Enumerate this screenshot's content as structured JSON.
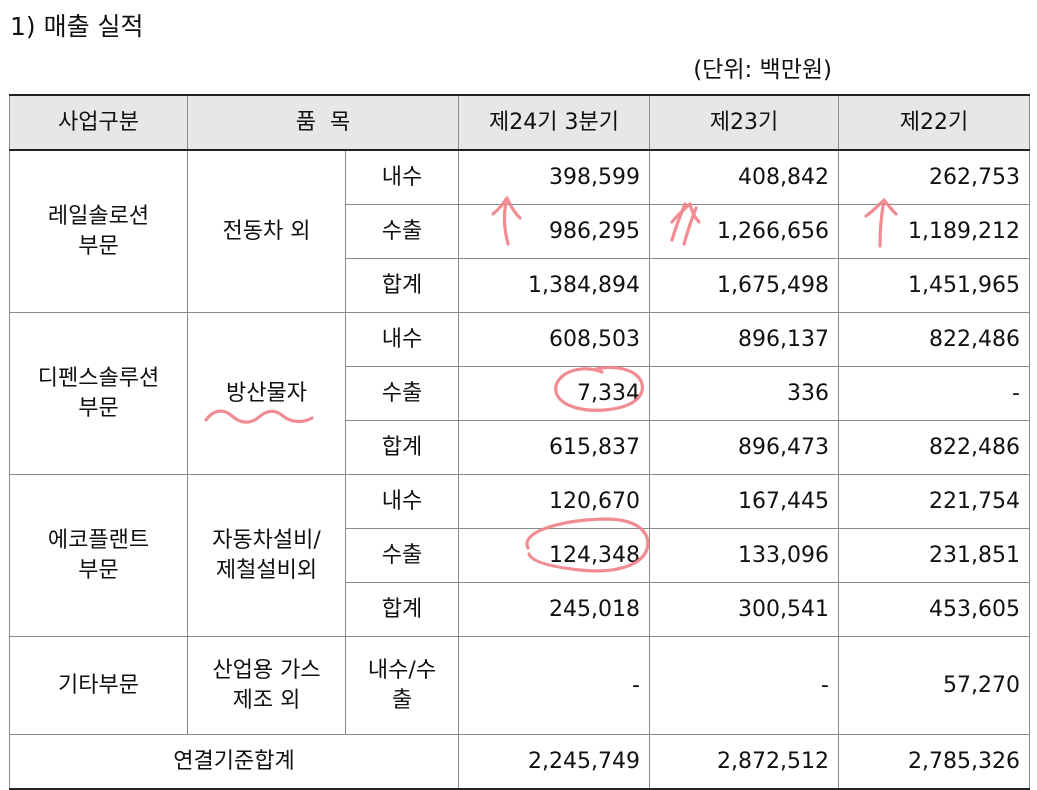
{
  "title": "1) 매출 실적",
  "unit": "(단위: 백만원)",
  "headers": {
    "division": "사업구분",
    "product": "품  목",
    "p24": "제24기 3분기",
    "p23": "제23기",
    "p22": "제22기"
  },
  "sections": [
    {
      "division": [
        "레일솔로션",
        "부문"
      ],
      "product": [
        "전동차 외"
      ],
      "rows": [
        {
          "type": "내수",
          "p24": "398,599",
          "p23": "408,842",
          "p22": "262,753"
        },
        {
          "type": "수출",
          "p24": "986,295",
          "p23": "1,266,656",
          "p22": "1,189,212"
        },
        {
          "type": "합계",
          "p24": "1,384,894",
          "p23": "1,675,498",
          "p22": "1,451,965"
        }
      ]
    },
    {
      "division": [
        "디펜스솔루션",
        "부문"
      ],
      "product": [
        "방산물자"
      ],
      "rows": [
        {
          "type": "내수",
          "p24": "608,503",
          "p23": "896,137",
          "p22": "822,486"
        },
        {
          "type": "수출",
          "p24": "7,334",
          "p23": "336",
          "p22": "-"
        },
        {
          "type": "합계",
          "p24": "615,837",
          "p23": "896,473",
          "p22": "822,486"
        }
      ]
    },
    {
      "division": [
        "에코플랜트",
        "부문"
      ],
      "product": [
        "자동차설비/",
        "제철설비외"
      ],
      "rows": [
        {
          "type": "내수",
          "p24": "120,670",
          "p23": "167,445",
          "p22": "221,754"
        },
        {
          "type": "수출",
          "p24": "124,348",
          "p23": "133,096",
          "p22": "231,851"
        },
        {
          "type": "합계",
          "p24": "245,018",
          "p23": "300,541",
          "p22": "453,605"
        }
      ]
    }
  ],
  "other": {
    "division": "기타부문",
    "product": [
      "산업용 가스",
      "제조 외"
    ],
    "type": [
      "내수/수",
      "출"
    ],
    "p24": "-",
    "p23": "-",
    "p22": "57,270"
  },
  "total": {
    "label": "연결기준합계",
    "p24": "2,245,749",
    "p23": "2,872,512",
    "p22": "2,785,326"
  },
  "annotation_color": "#ef7f86"
}
